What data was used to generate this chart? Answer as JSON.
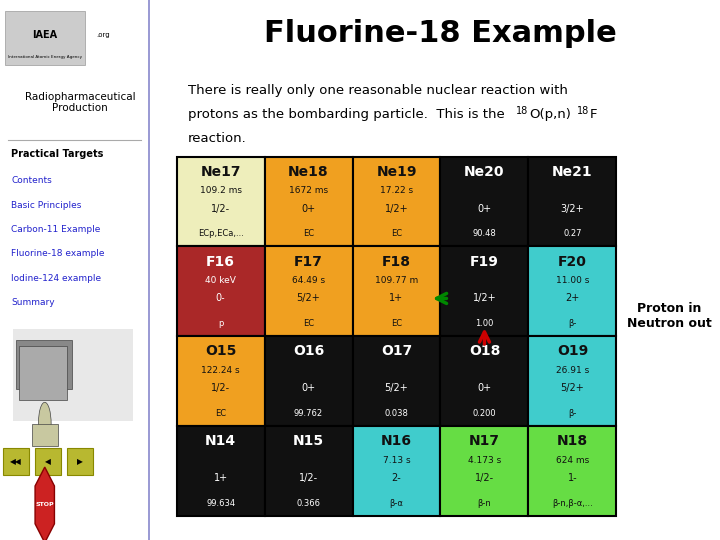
{
  "title": "Fluorine-18 Example",
  "title_fontsize": 22,
  "sidebar_title": "Radiopharmaceutical\nProduction",
  "sidebar_links_bold": [
    "Practical Targets"
  ],
  "sidebar_links_italic": [
    "Contents",
    "Basic Principles",
    "Carbon-11 Example",
    "Fluorine-18 example",
    "Iodine-124 example",
    "Summary"
  ],
  "proton_neutron_label": "Proton in\nNeutron out",
  "bg_color": "#ffffff",
  "sidebar_bg": "#ffffff",
  "sidebar_line_color": "#8888cc",
  "color_lookup": {
    "black": "#111111",
    "orange": "#f0a020",
    "light_yellow": "#eeeebb",
    "red_brown": "#aa2828",
    "cyan": "#40cccc",
    "green_bright": "#66dd44",
    "white": "#ffffff"
  },
  "cells": [
    {
      "row": 0,
      "col": 0,
      "symbol": "Ne17",
      "line2": "109.2 ms",
      "line3": "1/2-",
      "line4": "ECp,ECa,...",
      "color": "light_yellow",
      "text_color": "black"
    },
    {
      "row": 0,
      "col": 1,
      "symbol": "Ne18",
      "line2": "1672 ms",
      "line3": "0+",
      "line4": "EC",
      "color": "orange",
      "text_color": "black"
    },
    {
      "row": 0,
      "col": 2,
      "symbol": "Ne19",
      "line2": "17.22 s",
      "line3": "1/2+",
      "line4": "EC",
      "color": "orange",
      "text_color": "black"
    },
    {
      "row": 0,
      "col": 3,
      "symbol": "Ne20",
      "line2": "",
      "line3": "0+",
      "line4": "90.48",
      "color": "black",
      "text_color": "white"
    },
    {
      "row": 0,
      "col": 4,
      "symbol": "Ne21",
      "line2": "",
      "line3": "3/2+",
      "line4": "0.27",
      "color": "black",
      "text_color": "white"
    },
    {
      "row": 1,
      "col": 0,
      "symbol": "F16",
      "line2": "40 keV",
      "line3": "0-",
      "line4": "p",
      "color": "red_brown",
      "text_color": "white"
    },
    {
      "row": 1,
      "col": 1,
      "symbol": "F17",
      "line2": "64.49 s",
      "line3": "5/2+",
      "line4": "EC",
      "color": "orange",
      "text_color": "black"
    },
    {
      "row": 1,
      "col": 2,
      "symbol": "F18",
      "line2": "109.77 m",
      "line3": "1+",
      "line4": "EC",
      "color": "orange",
      "text_color": "black"
    },
    {
      "row": 1,
      "col": 3,
      "symbol": "F19",
      "line2": "",
      "line3": "1/2+",
      "line4": "1.00",
      "color": "black",
      "text_color": "white"
    },
    {
      "row": 1,
      "col": 4,
      "symbol": "F20",
      "line2": "11.00 s",
      "line3": "2+",
      "line4": "β-",
      "color": "cyan",
      "text_color": "black"
    },
    {
      "row": 2,
      "col": 0,
      "symbol": "O15",
      "line2": "122.24 s",
      "line3": "1/2-",
      "line4": "EC",
      "color": "orange",
      "text_color": "black"
    },
    {
      "row": 2,
      "col": 1,
      "symbol": "O16",
      "line2": "",
      "line3": "0+",
      "line4": "99.762",
      "color": "black",
      "text_color": "white"
    },
    {
      "row": 2,
      "col": 2,
      "symbol": "O17",
      "line2": "",
      "line3": "5/2+",
      "line4": "0.038",
      "color": "black",
      "text_color": "white"
    },
    {
      "row": 2,
      "col": 3,
      "symbol": "O18",
      "line2": "",
      "line3": "0+",
      "line4": "0.200",
      "color": "black",
      "text_color": "white"
    },
    {
      "row": 2,
      "col": 4,
      "symbol": "O19",
      "line2": "26.91 s",
      "line3": "5/2+",
      "line4": "β-",
      "color": "cyan",
      "text_color": "black"
    },
    {
      "row": 3,
      "col": 0,
      "symbol": "N14",
      "line2": "",
      "line3": "1+",
      "line4": "99.634",
      "color": "black",
      "text_color": "white"
    },
    {
      "row": 3,
      "col": 1,
      "symbol": "N15",
      "line2": "",
      "line3": "1/2-",
      "line4": "0.366",
      "color": "black",
      "text_color": "white"
    },
    {
      "row": 3,
      "col": 2,
      "symbol": "N16",
      "line2": "7.13 s",
      "line3": "2-",
      "line4": "β-α",
      "color": "cyan",
      "text_color": "black"
    },
    {
      "row": 3,
      "col": 3,
      "symbol": "N17",
      "line2": "4.173 s",
      "line3": "1/2-",
      "line4": "β-n",
      "color": "green_bright",
      "text_color": "black"
    },
    {
      "row": 3,
      "col": 4,
      "symbol": "N18",
      "line2": "624 ms",
      "line3": "1-",
      "line4": "β-n,β-α,...",
      "color": "green_bright",
      "text_color": "black"
    }
  ]
}
